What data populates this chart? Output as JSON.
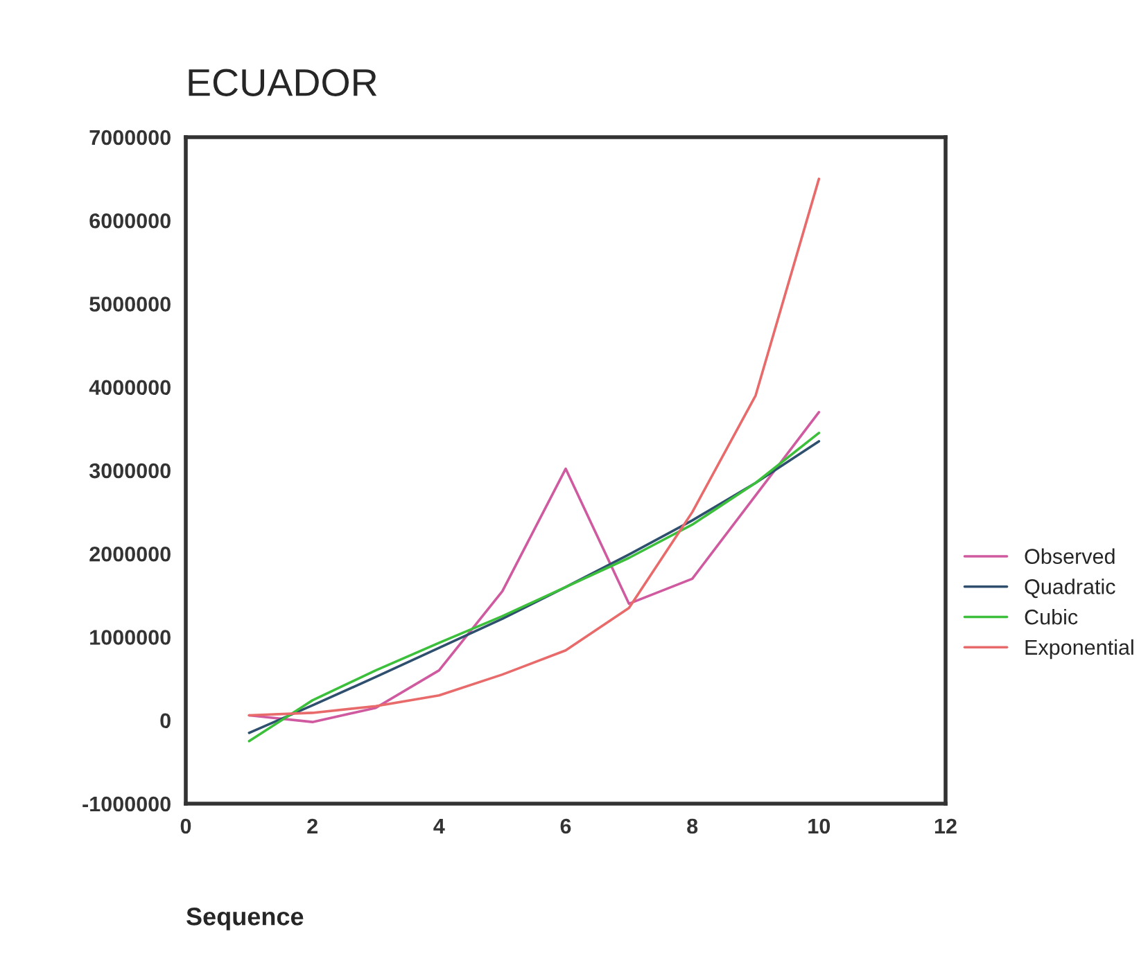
{
  "chart_data": {
    "type": "line",
    "title": "ECUADOR",
    "xlabel": "Sequence",
    "x": [
      1,
      2,
      3,
      4,
      5,
      6,
      7,
      8,
      9,
      10
    ],
    "series": [
      {
        "name": "Observed",
        "color": "#d05aa0",
        "values": [
          60000,
          -20000,
          150000,
          600000,
          1550000,
          3020000,
          1400000,
          1700000,
          2700000,
          3700000
        ]
      },
      {
        "name": "Quadratic",
        "color": "#2f4f6f",
        "values": [
          -150000,
          180000,
          520000,
          870000,
          1220000,
          1600000,
          1990000,
          2400000,
          2850000,
          3350000
        ]
      },
      {
        "name": "Cubic",
        "color": "#3cc03c",
        "values": [
          -250000,
          240000,
          600000,
          930000,
          1250000,
          1600000,
          1950000,
          2350000,
          2850000,
          3450000
        ]
      },
      {
        "name": "Exponential",
        "color": "#e86a6a",
        "values": [
          60000,
          90000,
          170000,
          300000,
          550000,
          840000,
          1350000,
          2500000,
          3900000,
          6500000
        ]
      }
    ],
    "xlim": [
      0,
      12
    ],
    "xticks": [
      0,
      2,
      4,
      6,
      8,
      10,
      12
    ],
    "ylim": [
      -1000000,
      7000000
    ],
    "yticks": [
      -1000000,
      0,
      1000000,
      2000000,
      3000000,
      4000000,
      5000000,
      6000000,
      7000000
    ],
    "grid": false,
    "legend": "right",
    "marker": "none",
    "line_style": "solid"
  }
}
